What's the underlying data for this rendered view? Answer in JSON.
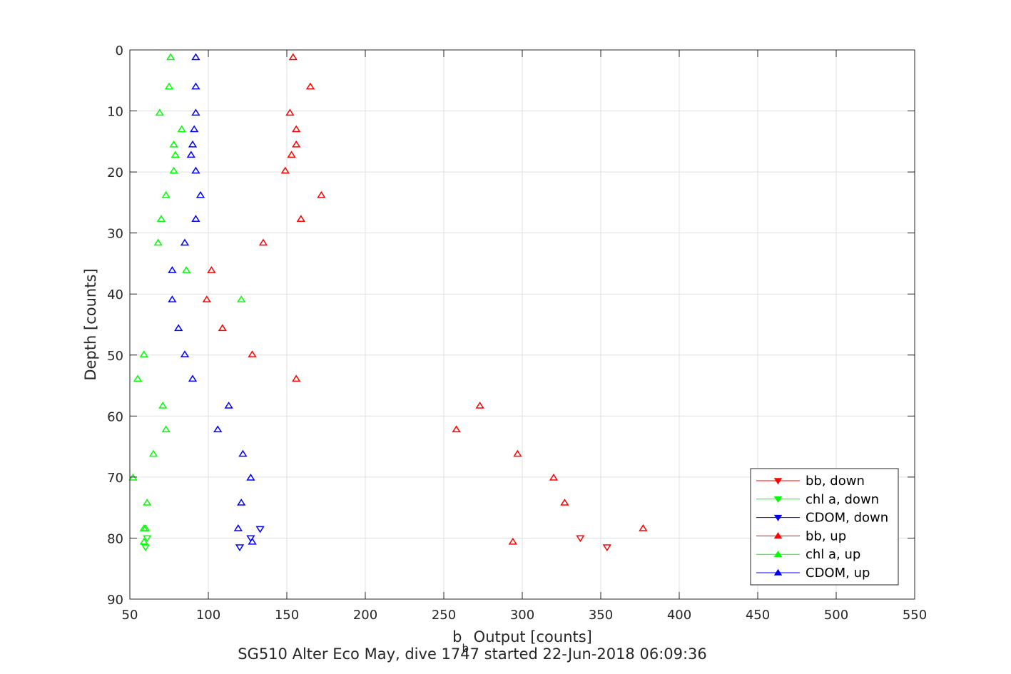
{
  "chart_data": {
    "type": "scatter",
    "xlabel_main": "b",
    "xlabel_sub": "b",
    "xlabel_rest": " Output [counts]",
    "ylabel": "Depth [counts]",
    "caption": "SG510 Alter Eco May, dive 1747 started 22-Jun-2018 06:09:36",
    "xlim": [
      50,
      550
    ],
    "ylim": [
      0,
      90
    ],
    "y_reversed": true,
    "grid": true,
    "legend_position": "bottom-right",
    "x_ticks": [
      "50",
      "100",
      "150",
      "200",
      "250",
      "300",
      "350",
      "400",
      "450",
      "500",
      "550"
    ],
    "y_ticks": [
      "0",
      "10",
      "20",
      "30",
      "40",
      "50",
      "60",
      "70",
      "80",
      "90"
    ],
    "series": [
      {
        "name": "bb, down",
        "color": "#ff0000",
        "marker": "triangle-down",
        "points": [
          [
            337,
            80.0
          ],
          [
            354,
            81.5
          ]
        ]
      },
      {
        "name": "chl a, down",
        "color": "#00ff00",
        "marker": "triangle-down",
        "points": [
          [
            61,
            80.0
          ],
          [
            60,
            81.5
          ]
        ]
      },
      {
        "name": "CDOM, down",
        "color": "#0000ff",
        "marker": "triangle-down",
        "points": [
          [
            133,
            78.5
          ],
          [
            127,
            80.0
          ],
          [
            120,
            81.5
          ]
        ]
      },
      {
        "name": "bb, up",
        "color": "#ff0000",
        "marker": "triangle-up",
        "points": [
          [
            154,
            1.2
          ],
          [
            165,
            6.0
          ],
          [
            152,
            10.3
          ],
          [
            156,
            13.0
          ],
          [
            156,
            15.5
          ],
          [
            153,
            17.2
          ],
          [
            149,
            19.8
          ],
          [
            172,
            23.8
          ],
          [
            159,
            27.7
          ],
          [
            135,
            31.6
          ],
          [
            102,
            36.1
          ],
          [
            99,
            40.9
          ],
          [
            109,
            45.6
          ],
          [
            128,
            49.9
          ],
          [
            156,
            53.9
          ],
          [
            273,
            58.3
          ],
          [
            258,
            62.2
          ],
          [
            297,
            66.2
          ],
          [
            320,
            70.1
          ],
          [
            327,
            74.2
          ],
          [
            377,
            78.4
          ],
          [
            294,
            80.6
          ]
        ]
      },
      {
        "name": "chl a, up",
        "color": "#00ff00",
        "marker": "triangle-up",
        "points": [
          [
            76,
            1.2
          ],
          [
            75,
            6.0
          ],
          [
            69,
            10.3
          ],
          [
            83,
            13.0
          ],
          [
            78,
            15.5
          ],
          [
            79,
            17.2
          ],
          [
            78,
            19.8
          ],
          [
            73,
            23.8
          ],
          [
            70,
            27.7
          ],
          [
            68,
            31.6
          ],
          [
            86,
            36.1
          ],
          [
            121,
            40.9
          ],
          [
            59,
            49.9
          ],
          [
            55,
            53.9
          ],
          [
            71,
            58.3
          ],
          [
            73,
            62.2
          ],
          [
            65,
            66.2
          ],
          [
            52,
            70.1
          ],
          [
            61,
            74.2
          ],
          [
            59,
            78.4
          ],
          [
            60,
            78.4
          ],
          [
            59,
            80.6
          ]
        ]
      },
      {
        "name": "CDOM, up",
        "color": "#0000ff",
        "marker": "triangle-up",
        "points": [
          [
            92,
            1.2
          ],
          [
            92,
            6.0
          ],
          [
            92,
            10.3
          ],
          [
            91,
            13.0
          ],
          [
            90,
            15.5
          ],
          [
            89,
            17.2
          ],
          [
            92,
            19.8
          ],
          [
            95,
            23.8
          ],
          [
            92,
            27.7
          ],
          [
            85,
            31.6
          ],
          [
            77,
            36.1
          ],
          [
            77,
            40.9
          ],
          [
            81,
            45.6
          ],
          [
            85,
            49.9
          ],
          [
            90,
            53.9
          ],
          [
            113,
            58.3
          ],
          [
            106,
            62.2
          ],
          [
            122,
            66.2
          ],
          [
            127,
            70.1
          ],
          [
            121,
            74.2
          ],
          [
            119,
            78.4
          ],
          [
            128,
            80.6
          ]
        ]
      }
    ]
  }
}
